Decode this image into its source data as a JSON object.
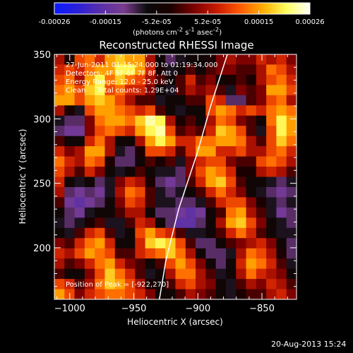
{
  "colorbar": {
    "tick_labels": [
      "-0.00026",
      "-0.00015",
      "-5.2e-05",
      "5.2e-05",
      "0.00015",
      "0.00026"
    ],
    "unit_html": "(photons cm<sup>-2</sup> s<sup>-1</sup> asec<sup>-2</sup>)",
    "colors": [
      "#0a1aff",
      "#2a20d8",
      "#5a2fa8",
      "#7a3c8e",
      "#0a0a0a",
      "#1b0000",
      "#7a0000",
      "#c81b00",
      "#ff5a00",
      "#ffb000",
      "#ffff60",
      "#ffffff"
    ]
  },
  "plot": {
    "title": "Reconstructed RHESSI Image",
    "xlabel": "Heliocentric X (arcsec)",
    "ylabel": "Heliocentric Y (arcsec)",
    "xticks": [
      "-1000",
      "-950",
      "-900",
      "-850"
    ],
    "yticks": [
      "200",
      "250",
      "300",
      "350"
    ]
  },
  "annotations": {
    "time_range": "27-Jun-2011 01:15:24.000 to 01:19:34.000",
    "detectors": "Detectors: 4F 5F 6F 7F 8F, Att 0",
    "energy": "Energy Range: 12.0 - 25.0 keV",
    "method": "Clean     Total counts: 1.29E+04",
    "peak": "Position of Peak = [-922,270]"
  },
  "footer_date": "20-Aug-2013 15:24",
  "chart_data": {
    "type": "heatmap",
    "title": "Reconstructed RHESSI Image",
    "xlabel": "Heliocentric X (arcsec)",
    "ylabel": "Heliocentric Y (arcsec)",
    "xlim": [
      -1012,
      -823
    ],
    "ylim": [
      160,
      350
    ],
    "color_range": [
      -0.00026,
      0.00026
    ],
    "peak_position": [
      -922,
      270
    ],
    "limb_points": [
      [
        -930,
        160
      ],
      [
        -925,
        190
      ],
      [
        -915,
        230
      ],
      [
        -900,
        275
      ],
      [
        -890,
        310
      ],
      [
        -877,
        350
      ]
    ],
    "grid_cols": 24,
    "grid_rows": 24,
    "intensity_grid": [
      [
        0.2,
        -0.1,
        0.4,
        0.5,
        0.3,
        0.6,
        0.7,
        0.6,
        0.6,
        0.2,
        -0.2,
        -0.4,
        -0.3,
        -0.2,
        -0.2,
        -0.1,
        0.1,
        0.2,
        0.1,
        0.1,
        0.3,
        0.2,
        0.3,
        0.1
      ],
      [
        0.3,
        0.4,
        0.3,
        0.5,
        0.6,
        0.6,
        0.8,
        0.8,
        0.6,
        0.3,
        -0.1,
        -0.3,
        -0.2,
        0.0,
        -0.2,
        0.0,
        0.1,
        0.1,
        0.0,
        0.0,
        0.2,
        0.5,
        0.4,
        0.2
      ],
      [
        0.4,
        0.5,
        0.2,
        0.6,
        0.8,
        0.5,
        0.7,
        0.5,
        0.4,
        0.2,
        0.0,
        -0.2,
        0.0,
        0.3,
        0.0,
        0.1,
        -0.2,
        -0.1,
        0.0,
        -0.1,
        0.2,
        0.4,
        0.5,
        0.3
      ],
      [
        0.5,
        0.6,
        0.4,
        0.7,
        0.8,
        0.4,
        0.5,
        0.3,
        0.3,
        0.1,
        -0.2,
        -0.3,
        0.0,
        0.2,
        0.1,
        0.2,
        0.0,
        -0.3,
        0.1,
        0.0,
        0.1,
        0.6,
        0.6,
        0.4
      ],
      [
        0.6,
        0.6,
        0.4,
        0.6,
        0.7,
        0.6,
        0.4,
        0.2,
        0.0,
        0.0,
        -0.3,
        -0.2,
        -0.2,
        0.0,
        0.0,
        0.4,
        0.3,
        -0.4,
        -0.4,
        0.0,
        0.1,
        0.4,
        0.5,
        0.2
      ],
      [
        0.2,
        -0.1,
        -0.3,
        0.4,
        0.6,
        0.6,
        0.5,
        0.4,
        0.3,
        0.4,
        0.0,
        -0.2,
        -0.3,
        -0.2,
        -0.2,
        0.4,
        0.6,
        0.5,
        0.3,
        0.4,
        0.3,
        0.5,
        0.6,
        0.5
      ],
      [
        -0.3,
        -0.4,
        -0.4,
        0.1,
        0.5,
        0.6,
        0.6,
        0.5,
        0.7,
        0.9,
        0.8,
        0.2,
        -0.1,
        0.0,
        -0.2,
        0.2,
        0.5,
        0.4,
        0.1,
        0.0,
        -0.2,
        0.5,
        0.8,
        0.6
      ],
      [
        -0.4,
        -0.5,
        -0.5,
        0.1,
        0.4,
        0.5,
        0.4,
        0.3,
        0.6,
        0.8,
        0.9,
        0.4,
        0.0,
        0.1,
        0.0,
        0.3,
        0.7,
        0.6,
        0.4,
        0.0,
        -0.3,
        0.4,
        0.8,
        0.6
      ],
      [
        0.0,
        -0.2,
        -0.2,
        0.3,
        0.5,
        0.2,
        -0.2,
        -0.2,
        0.2,
        0.6,
        0.8,
        0.6,
        0.3,
        0.3,
        0.5,
        0.5,
        0.6,
        0.6,
        0.5,
        0.2,
        0.0,
        0.4,
        0.7,
        0.5
      ],
      [
        0.3,
        0.1,
        0.2,
        0.6,
        0.6,
        0.2,
        -0.3,
        -0.4,
        -0.1,
        0.4,
        0.4,
        0.3,
        0.0,
        0.3,
        0.6,
        0.6,
        0.3,
        0.3,
        0.4,
        0.2,
        0.2,
        0.4,
        0.5,
        0.3
      ],
      [
        0.5,
        0.3,
        0.2,
        0.5,
        0.4,
        -0.1,
        -0.4,
        -0.4,
        -0.2,
        0.0,
        -0.1,
        0.0,
        -0.3,
        0.1,
        0.3,
        0.4,
        0.4,
        0.1,
        0.0,
        0.0,
        0.4,
        0.5,
        0.4,
        0.2
      ],
      [
        0.4,
        0.2,
        0.0,
        0.3,
        0.1,
        -0.2,
        -0.3,
        -0.2,
        0.0,
        -0.2,
        -0.3,
        -0.3,
        -0.4,
        0.1,
        0.4,
        0.6,
        0.5,
        0.3,
        -0.1,
        -0.1,
        0.2,
        0.3,
        0.2,
        0.0
      ],
      [
        0.3,
        -0.2,
        -0.3,
        -0.2,
        -0.4,
        -0.3,
        0.1,
        0.3,
        0.2,
        -0.1,
        -0.4,
        -0.5,
        -0.4,
        0.0,
        0.3,
        0.6,
        0.7,
        0.4,
        0.0,
        -0.2,
        -0.2,
        -0.3,
        -0.4,
        -0.3
      ],
      [
        0.2,
        -0.4,
        -0.5,
        -0.4,
        -0.5,
        -0.3,
        0.2,
        0.5,
        0.4,
        0.0,
        -0.3,
        -0.4,
        -0.3,
        -0.2,
        0.0,
        0.3,
        0.5,
        0.3,
        0.1,
        -0.2,
        -0.3,
        -0.4,
        -0.5,
        -0.4
      ],
      [
        0.0,
        -0.5,
        -0.6,
        -0.5,
        -0.4,
        -0.2,
        0.1,
        0.4,
        0.3,
        0.0,
        -0.3,
        -0.3,
        -0.4,
        -0.4,
        -0.3,
        0.0,
        0.3,
        0.4,
        0.4,
        0.1,
        -0.1,
        -0.3,
        -0.4,
        -0.3
      ],
      [
        -0.2,
        -0.4,
        -0.5,
        -0.3,
        -0.2,
        -0.2,
        0.0,
        0.2,
        0.2,
        -0.2,
        -0.4,
        -0.4,
        -0.5,
        -0.6,
        -0.5,
        -0.2,
        0.0,
        0.5,
        0.6,
        0.2,
        0.0,
        -0.3,
        -0.5,
        -0.4
      ],
      [
        -0.3,
        -0.4,
        -0.3,
        -0.1,
        0.0,
        -0.3,
        -0.3,
        0.0,
        0.3,
        0.2,
        -0.2,
        -0.4,
        -0.6,
        -0.6,
        -0.4,
        -0.2,
        0.2,
        0.6,
        0.7,
        0.4,
        0.1,
        -0.2,
        -0.3,
        -0.4
      ],
      [
        -0.2,
        -0.3,
        0.0,
        0.3,
        0.4,
        0.0,
        -0.3,
        -0.2,
        0.4,
        0.6,
        0.4,
        0.3,
        0.0,
        -0.3,
        -0.3,
        -0.2,
        0.0,
        0.3,
        0.5,
        0.3,
        0.0,
        -0.2,
        -0.3,
        -0.3
      ],
      [
        0.1,
        0.0,
        0.3,
        0.5,
        0.6,
        0.3,
        -0.2,
        -0.2,
        0.3,
        0.7,
        0.8,
        0.7,
        0.4,
        0.0,
        -0.4,
        -0.4,
        -0.2,
        0.0,
        0.1,
        0.2,
        0.3,
        0.1,
        -0.2,
        -0.4
      ],
      [
        0.3,
        0.2,
        0.4,
        0.6,
        0.5,
        0.4,
        0.0,
        0.0,
        0.3,
        0.4,
        0.5,
        0.7,
        0.5,
        0.2,
        -0.2,
        -0.4,
        -0.4,
        -0.3,
        0.2,
        0.5,
        0.4,
        0.2,
        -0.1,
        -0.4
      ],
      [
        0.2,
        0.0,
        0.1,
        0.3,
        0.5,
        0.6,
        0.3,
        0.1,
        0.0,
        -0.2,
        0.0,
        0.4,
        0.6,
        0.4,
        0.1,
        -0.2,
        -0.4,
        -0.2,
        0.3,
        0.6,
        0.5,
        0.3,
        0.0,
        -0.3
      ],
      [
        0.0,
        -0.2,
        -0.2,
        0.1,
        0.4,
        0.7,
        0.5,
        0.3,
        0.0,
        -0.3,
        -0.2,
        0.2,
        0.5,
        0.5,
        0.2,
        0.0,
        -0.3,
        -0.2,
        0.2,
        0.5,
        0.3,
        0.2,
        0.1,
        -0.2
      ],
      [
        0.4,
        0.3,
        0.0,
        0.2,
        0.5,
        0.7,
        0.6,
        0.4,
        0.2,
        -0.1,
        -0.2,
        0.0,
        0.3,
        0.4,
        0.2,
        0.1,
        -0.2,
        -0.3,
        0.0,
        0.2,
        0.1,
        0.3,
        0.2,
        0.0
      ],
      [
        0.6,
        0.4,
        0.1,
        0.3,
        0.4,
        0.5,
        0.5,
        0.4,
        0.3,
        0.1,
        -0.2,
        -0.2,
        0.0,
        0.2,
        0.1,
        0.0,
        -0.2,
        -0.3,
        -0.1,
        0.0,
        0.0,
        0.2,
        0.3,
        0.1
      ]
    ]
  }
}
